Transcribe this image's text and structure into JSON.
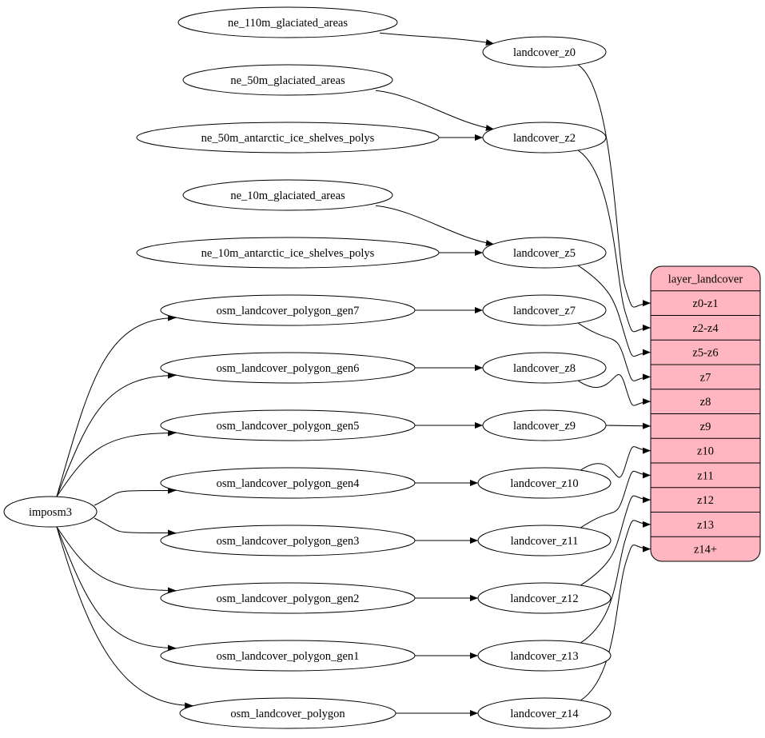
{
  "nodes": {
    "ne_110m_glaciated_areas": "ne_110m_glaciated_areas",
    "ne_50m_glaciated_areas": "ne_50m_glaciated_areas",
    "ne_50m_antarctic_ice_shelves_polys": "ne_50m_antarctic_ice_shelves_polys",
    "ne_10m_glaciated_areas": "ne_10m_glaciated_areas",
    "ne_10m_antarctic_ice_shelves_polys": "ne_10m_antarctic_ice_shelves_polys",
    "osm_landcover_polygon_gen7": "osm_landcover_polygon_gen7",
    "osm_landcover_polygon_gen6": "osm_landcover_polygon_gen6",
    "osm_landcover_polygon_gen5": "osm_landcover_polygon_gen5",
    "osm_landcover_polygon_gen4": "osm_landcover_polygon_gen4",
    "osm_landcover_polygon_gen3": "osm_landcover_polygon_gen3",
    "osm_landcover_polygon_gen2": "osm_landcover_polygon_gen2",
    "osm_landcover_polygon_gen1": "osm_landcover_polygon_gen1",
    "osm_landcover_polygon": "osm_landcover_polygon",
    "imposm3": "imposm3",
    "landcover_z0": "landcover_z0",
    "landcover_z2": "landcover_z2",
    "landcover_z5": "landcover_z5",
    "landcover_z7": "landcover_z7",
    "landcover_z8": "landcover_z8",
    "landcover_z9": "landcover_z9",
    "landcover_z10": "landcover_z10",
    "landcover_z11": "landcover_z11",
    "landcover_z12": "landcover_z12",
    "landcover_z13": "landcover_z13",
    "landcover_z14": "landcover_z14"
  },
  "layer": {
    "title": "layer_landcover",
    "fill_color": "#ffb6c1",
    "rows": [
      "z0-z1",
      "z2-z4",
      "z5-z6",
      "z7",
      "z8",
      "z9",
      "z10",
      "z11",
      "z12",
      "z13",
      "z14+"
    ]
  },
  "edges": [
    [
      "ne_110m_glaciated_areas",
      "landcover_z0"
    ],
    [
      "ne_50m_glaciated_areas",
      "landcover_z2"
    ],
    [
      "ne_50m_antarctic_ice_shelves_polys",
      "landcover_z2"
    ],
    [
      "ne_10m_glaciated_areas",
      "landcover_z5"
    ],
    [
      "ne_10m_antarctic_ice_shelves_polys",
      "landcover_z5"
    ],
    [
      "osm_landcover_polygon_gen7",
      "landcover_z7"
    ],
    [
      "osm_landcover_polygon_gen6",
      "landcover_z8"
    ],
    [
      "osm_landcover_polygon_gen5",
      "landcover_z9"
    ],
    [
      "osm_landcover_polygon_gen4",
      "landcover_z10"
    ],
    [
      "osm_landcover_polygon_gen3",
      "landcover_z11"
    ],
    [
      "osm_landcover_polygon_gen2",
      "landcover_z12"
    ],
    [
      "osm_landcover_polygon_gen1",
      "landcover_z13"
    ],
    [
      "osm_landcover_polygon",
      "landcover_z14"
    ],
    [
      "imposm3",
      "osm_landcover_polygon_gen7"
    ],
    [
      "imposm3",
      "osm_landcover_polygon_gen6"
    ],
    [
      "imposm3",
      "osm_landcover_polygon_gen5"
    ],
    [
      "imposm3",
      "osm_landcover_polygon_gen4"
    ],
    [
      "imposm3",
      "osm_landcover_polygon_gen3"
    ],
    [
      "imposm3",
      "osm_landcover_polygon_gen2"
    ],
    [
      "imposm3",
      "osm_landcover_polygon_gen1"
    ],
    [
      "imposm3",
      "osm_landcover_polygon"
    ],
    [
      "landcover_z0",
      "layer:z0-z1"
    ],
    [
      "landcover_z2",
      "layer:z2-z4"
    ],
    [
      "landcover_z5",
      "layer:z5-z6"
    ],
    [
      "landcover_z7",
      "layer:z7"
    ],
    [
      "landcover_z8",
      "layer:z8"
    ],
    [
      "landcover_z9",
      "layer:z9"
    ],
    [
      "landcover_z10",
      "layer:z10"
    ],
    [
      "landcover_z11",
      "layer:z11"
    ],
    [
      "landcover_z12",
      "layer:z12"
    ],
    [
      "landcover_z13",
      "layer:z13"
    ],
    [
      "landcover_z14",
      "layer:z14+"
    ]
  ]
}
